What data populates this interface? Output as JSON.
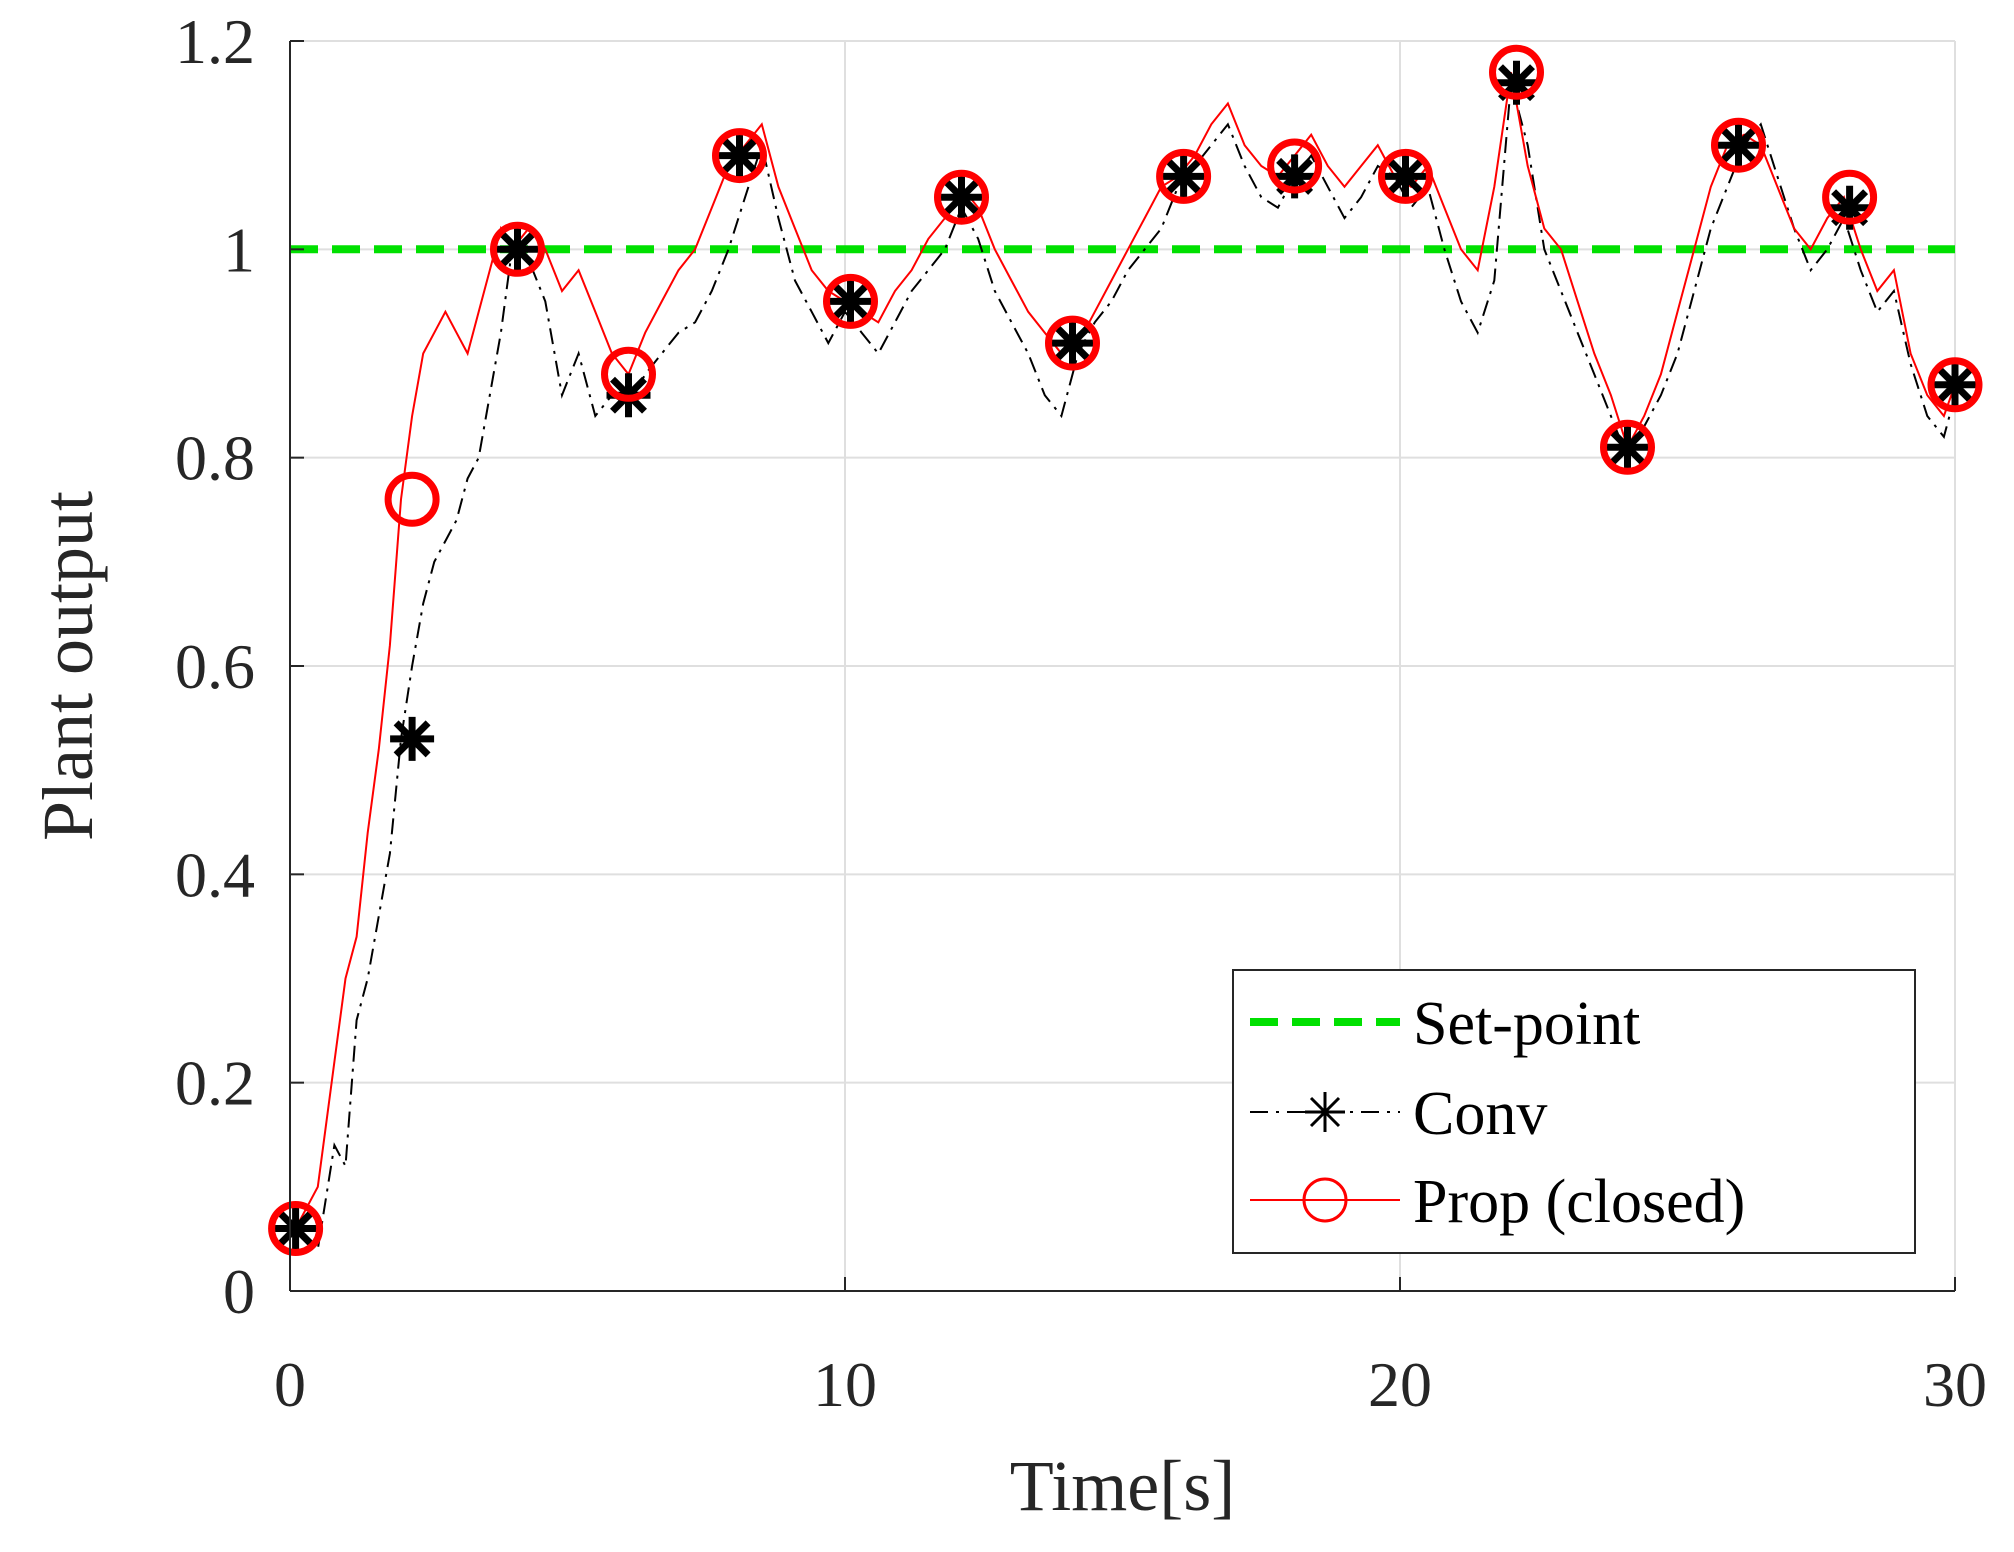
{
  "chart_data": {
    "type": "line",
    "title": "",
    "xlabel": "Time[s]",
    "ylabel": "Plant output",
    "xlim": [
      0,
      30
    ],
    "ylim": [
      0,
      1.2
    ],
    "xticks": [
      0,
      10,
      20,
      30
    ],
    "xtick_labels": [
      "0",
      "10",
      "20",
      "30"
    ],
    "yticks": [
      0,
      0.2,
      0.4,
      0.6,
      0.8,
      1,
      1.2
    ],
    "ytick_labels": [
      "0",
      "0.2",
      "0.4",
      "0.6",
      "0.8",
      "1",
      "1.2"
    ],
    "grid": true,
    "legend_position": "bottom-right",
    "series": [
      {
        "name": "Set-point",
        "style": "dashed",
        "color": "#00e000",
        "x": [
          0,
          30
        ],
        "y": [
          1,
          1
        ]
      },
      {
        "name": "Conv",
        "style": "dash-dot",
        "marker": "asterisk",
        "color": "#000000",
        "x": [
          0.1,
          0.5,
          0.8,
          1.0,
          1.2,
          1.4,
          1.6,
          1.8,
          2.0,
          2.2,
          2.4,
          2.6,
          2.8,
          3.0,
          3.2,
          3.4,
          3.6,
          3.8,
          4.0,
          4.3,
          4.6,
          4.9,
          5.2,
          5.5,
          5.8,
          6.1,
          6.4,
          6.7,
          7.0,
          7.3,
          7.6,
          7.9,
          8.2,
          8.5,
          8.8,
          9.1,
          9.4,
          9.7,
          10.0,
          10.3,
          10.6,
          10.9,
          11.2,
          11.5,
          11.8,
          12.1,
          12.4,
          12.7,
          13.0,
          13.3,
          13.6,
          13.9,
          14.2,
          14.5,
          14.8,
          15.1,
          15.4,
          15.7,
          16.0,
          16.3,
          16.6,
          16.9,
          17.2,
          17.5,
          17.8,
          18.1,
          18.4,
          18.7,
          19.0,
          19.3,
          19.6,
          19.9,
          20.2,
          20.5,
          20.8,
          21.1,
          21.4,
          21.7,
          22.0,
          22.3,
          22.6,
          22.9,
          23.2,
          23.5,
          23.8,
          24.1,
          24.4,
          24.7,
          25.0,
          25.3,
          25.6,
          25.9,
          26.2,
          26.5,
          26.8,
          27.1,
          27.4,
          27.7,
          28.0,
          28.3,
          28.6,
          28.9,
          29.2,
          29.5,
          29.8,
          30.0
        ],
        "y": [
          0.06,
          0.04,
          0.14,
          0.12,
          0.26,
          0.3,
          0.36,
          0.42,
          0.53,
          0.6,
          0.66,
          0.7,
          0.72,
          0.74,
          0.78,
          0.8,
          0.86,
          0.92,
          1.0,
          0.99,
          0.95,
          0.86,
          0.9,
          0.84,
          0.86,
          0.85,
          0.88,
          0.9,
          0.92,
          0.93,
          0.96,
          1.0,
          1.05,
          1.1,
          1.03,
          0.97,
          0.94,
          0.91,
          0.94,
          0.92,
          0.9,
          0.93,
          0.96,
          0.98,
          1.0,
          1.04,
          1.01,
          0.96,
          0.93,
          0.9,
          0.86,
          0.84,
          0.9,
          0.93,
          0.95,
          0.98,
          1.0,
          1.02,
          1.06,
          1.08,
          1.1,
          1.12,
          1.08,
          1.05,
          1.04,
          1.07,
          1.09,
          1.06,
          1.03,
          1.05,
          1.08,
          1.07,
          1.04,
          1.06,
          1.0,
          0.95,
          0.92,
          0.97,
          1.16,
          1.1,
          1.0,
          0.96,
          0.92,
          0.88,
          0.84,
          0.8,
          0.83,
          0.86,
          0.9,
          0.96,
          1.02,
          1.06,
          1.1,
          1.12,
          1.07,
          1.02,
          0.98,
          1.0,
          1.03,
          0.98,
          0.94,
          0.96,
          0.89,
          0.84,
          0.82,
          0.86
        ]
      },
      {
        "name": "Prop (closed)",
        "style": "solid",
        "marker": "circle",
        "color": "#ff0000",
        "x": [
          0.1,
          0.5,
          0.8,
          1.0,
          1.2,
          1.4,
          1.6,
          1.8,
          2.0,
          2.2,
          2.4,
          2.6,
          2.8,
          3.0,
          3.2,
          3.4,
          3.6,
          3.8,
          4.0,
          4.3,
          4.6,
          4.9,
          5.2,
          5.5,
          5.8,
          6.1,
          6.4,
          6.7,
          7.0,
          7.3,
          7.6,
          7.9,
          8.2,
          8.5,
          8.8,
          9.1,
          9.4,
          9.7,
          10.0,
          10.3,
          10.6,
          10.9,
          11.2,
          11.5,
          11.8,
          12.1,
          12.4,
          12.7,
          13.0,
          13.3,
          13.6,
          13.9,
          14.2,
          14.5,
          14.8,
          15.1,
          15.4,
          15.7,
          16.0,
          16.3,
          16.6,
          16.9,
          17.2,
          17.5,
          17.8,
          18.1,
          18.4,
          18.7,
          19.0,
          19.3,
          19.6,
          19.9,
          20.2,
          20.5,
          20.8,
          21.1,
          21.4,
          21.7,
          22.0,
          22.3,
          22.6,
          22.9,
          23.2,
          23.5,
          23.8,
          24.1,
          24.4,
          24.7,
          25.0,
          25.3,
          25.6,
          25.9,
          26.2,
          26.5,
          26.8,
          27.1,
          27.4,
          27.7,
          28.0,
          28.3,
          28.6,
          28.9,
          29.2,
          29.5,
          29.8,
          30.0
        ],
        "y": [
          0.06,
          0.1,
          0.22,
          0.3,
          0.34,
          0.44,
          0.52,
          0.62,
          0.76,
          0.84,
          0.9,
          0.92,
          0.94,
          0.92,
          0.9,
          0.94,
          0.98,
          1.02,
          1.0,
          1.02,
          1.0,
          0.96,
          0.98,
          0.94,
          0.9,
          0.88,
          0.92,
          0.95,
          0.98,
          1.0,
          1.04,
          1.08,
          1.1,
          1.12,
          1.06,
          1.02,
          0.98,
          0.96,
          0.95,
          0.94,
          0.93,
          0.96,
          0.98,
          1.01,
          1.03,
          1.06,
          1.04,
          1.0,
          0.97,
          0.94,
          0.92,
          0.9,
          0.91,
          0.94,
          0.97,
          1.0,
          1.03,
          1.06,
          1.07,
          1.09,
          1.12,
          1.14,
          1.1,
          1.08,
          1.07,
          1.09,
          1.11,
          1.08,
          1.06,
          1.08,
          1.1,
          1.07,
          1.06,
          1.08,
          1.04,
          1.0,
          0.98,
          1.06,
          1.17,
          1.08,
          1.02,
          1.0,
          0.95,
          0.9,
          0.86,
          0.81,
          0.84,
          0.88,
          0.94,
          1.0,
          1.06,
          1.1,
          1.11,
          1.1,
          1.06,
          1.02,
          1.0,
          1.03,
          1.05,
          1.0,
          0.96,
          0.98,
          0.9,
          0.86,
          0.84,
          0.87
        ]
      }
    ],
    "markers": {
      "Conv": {
        "x": [
          0.1,
          2.2,
          4.1,
          6.1,
          8.1,
          10.1,
          12.1,
          14.1,
          16.1,
          18.1,
          20.1,
          22.1,
          24.1,
          26.1,
          28.1,
          30.0
        ],
        "y": [
          0.06,
          0.53,
          1.0,
          0.86,
          1.09,
          0.95,
          1.05,
          0.91,
          1.07,
          1.07,
          1.07,
          1.16,
          0.81,
          1.1,
          1.04,
          0.87
        ]
      },
      "Prop (closed)": {
        "x": [
          0.1,
          2.2,
          4.1,
          6.1,
          8.1,
          10.1,
          12.1,
          14.1,
          16.1,
          18.1,
          20.1,
          22.1,
          24.1,
          26.1,
          28.1,
          30.0
        ],
        "y": [
          0.06,
          0.76,
          1.0,
          0.88,
          1.09,
          0.95,
          1.05,
          0.91,
          1.07,
          1.08,
          1.07,
          1.17,
          0.81,
          1.1,
          1.05,
          0.87
        ]
      }
    },
    "legend": [
      "Set-point",
      "Conv",
      "Prop (closed)"
    ]
  }
}
